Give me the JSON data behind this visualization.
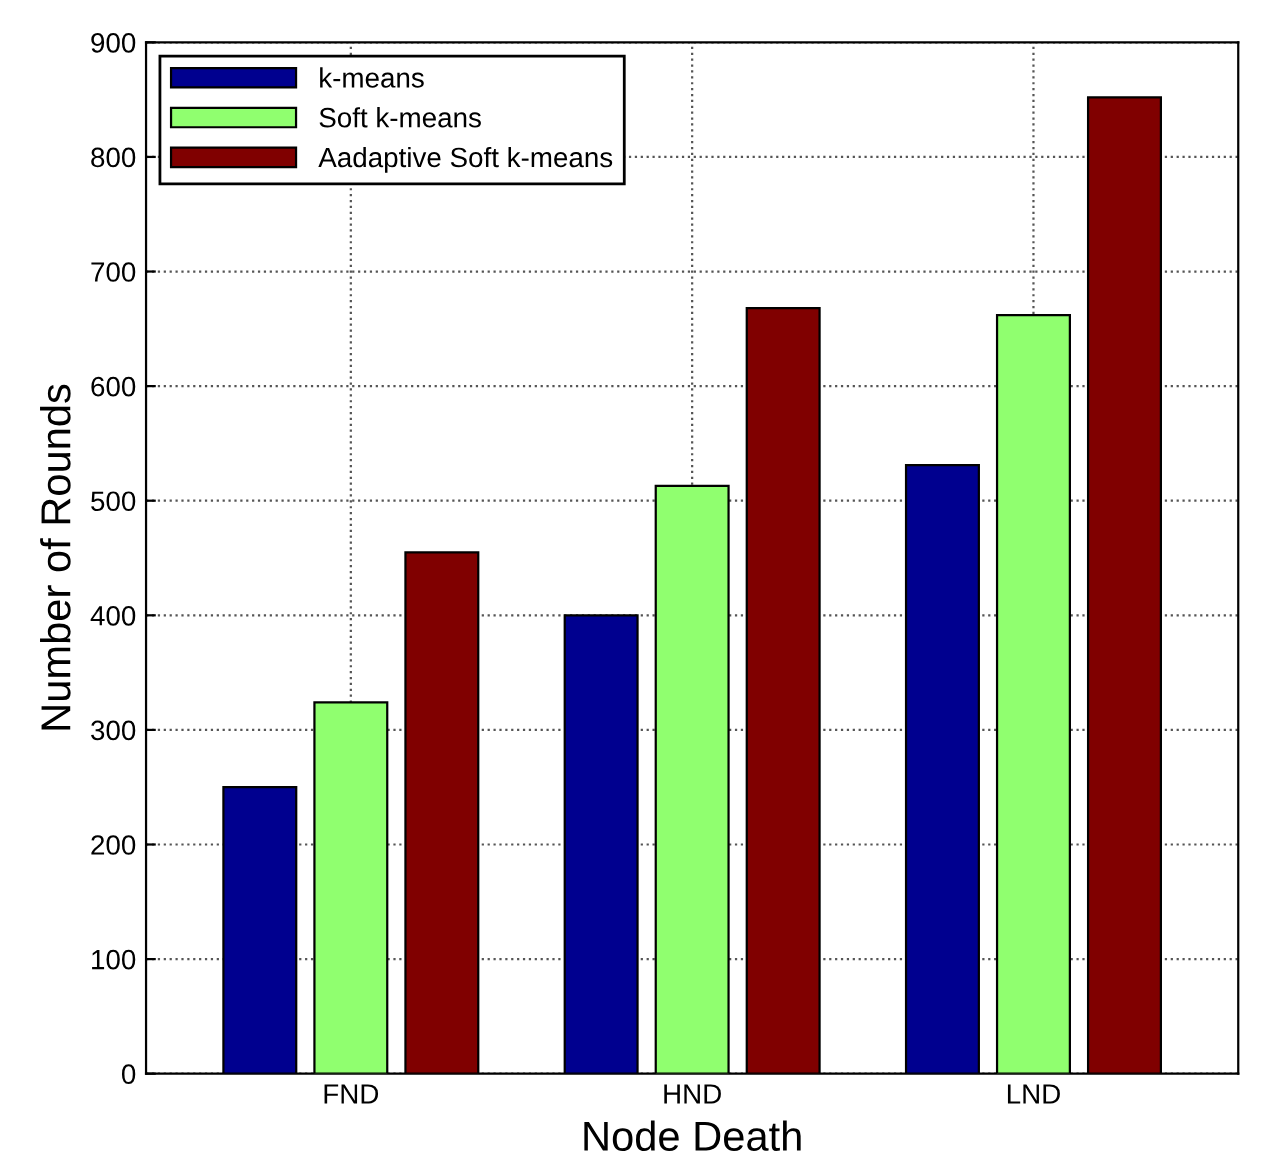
{
  "chart_data": {
    "type": "bar",
    "xlabel": "Node Death",
    "ylabel": "Number of Rounds",
    "categories": [
      "FND",
      "HND",
      "LND"
    ],
    "series": [
      {
        "name": "k-means",
        "color": "#00008f",
        "values": [
          250,
          400,
          531
        ]
      },
      {
        "name": "Soft k-means",
        "color": "#90ff6f",
        "values": [
          324,
          513,
          662
        ]
      },
      {
        "name": "Aadaptive Soft k-means",
        "color": "#800000",
        "values": [
          455,
          668,
          852
        ]
      }
    ],
    "ylim": [
      0,
      900
    ],
    "yticks": [
      0,
      100,
      200,
      300,
      400,
      500,
      600,
      700,
      800,
      900
    ],
    "grid": true,
    "legend": "top left"
  }
}
